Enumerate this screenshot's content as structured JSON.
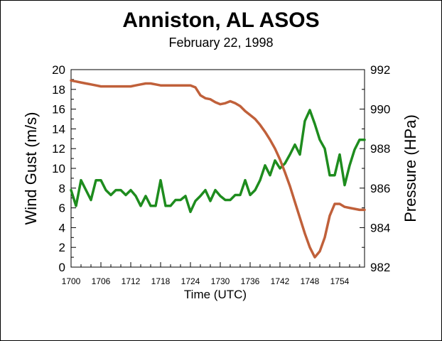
{
  "chart_data": {
    "type": "line",
    "title": "Anniston, AL ASOS",
    "subtitle": "February 22, 1998",
    "xlabel": "Time (UTC)",
    "ylabel_left": "Wind Gust (m/s)",
    "ylabel_right": "Pressure (HPa)",
    "x_ticks": [
      "1700",
      "1706",
      "1712",
      "1718",
      "1724",
      "1730",
      "1736",
      "1742",
      "1748",
      "1754"
    ],
    "xlim": [
      1700,
      1759
    ],
    "ylim_left": [
      0,
      20
    ],
    "ylim_right": [
      982,
      992
    ],
    "y_ticks_left": [
      "0",
      "2",
      "4",
      "6",
      "8",
      "10",
      "12",
      "14",
      "16",
      "18",
      "20"
    ],
    "y_ticks_right": [
      "982",
      "984",
      "986",
      "988",
      "990",
      "992"
    ],
    "grid": false,
    "legend": "none",
    "series": [
      {
        "axis": "left",
        "color": "#1e8c1e",
        "x": [
          1700,
          1701,
          1702,
          1703,
          1704,
          1705,
          1706,
          1707,
          1708,
          1709,
          1710,
          1711,
          1712,
          1713,
          1714,
          1715,
          1716,
          1717,
          1718,
          1719,
          1720,
          1721,
          1722,
          1723,
          1724,
          1725,
          1726,
          1727,
          1728,
          1729,
          1730,
          1731,
          1732,
          1733,
          1734,
          1735,
          1736,
          1737,
          1738,
          1739,
          1740,
          1741,
          1742,
          1743,
          1744,
          1745,
          1746,
          1747,
          1748,
          1749,
          1750,
          1751,
          1752,
          1753,
          1754,
          1755,
          1756,
          1757,
          1758,
          1759
        ],
        "values": [
          7.8,
          6.2,
          8.8,
          7.8,
          6.8,
          8.8,
          8.8,
          7.8,
          7.3,
          7.8,
          7.8,
          7.3,
          7.8,
          7.2,
          6.2,
          7.2,
          6.2,
          6.2,
          8.8,
          6.2,
          6.2,
          6.8,
          6.8,
          7.2,
          5.6,
          6.7,
          7.2,
          7.8,
          6.7,
          7.8,
          7.2,
          6.8,
          6.8,
          7.3,
          7.3,
          8.8,
          7.3,
          7.8,
          8.8,
          10.3,
          9.3,
          10.8,
          10.0,
          10.5,
          11.4,
          12.4,
          11.4,
          14.8,
          15.9,
          14.5,
          12.9,
          12.0,
          9.3,
          9.3,
          11.4,
          8.3,
          10.3,
          11.9,
          12.9,
          12.9
        ]
      },
      {
        "axis": "right",
        "color": "#c0603a",
        "x": [
          1700,
          1701,
          1702,
          1703,
          1704,
          1705,
          1706,
          1707,
          1708,
          1709,
          1710,
          1711,
          1712,
          1713,
          1714,
          1715,
          1716,
          1717,
          1718,
          1719,
          1720,
          1721,
          1722,
          1723,
          1724,
          1725,
          1726,
          1727,
          1728,
          1729,
          1730,
          1731,
          1732,
          1733,
          1734,
          1735,
          1736,
          1737,
          1738,
          1739,
          1740,
          1741,
          1742,
          1743,
          1744,
          1745,
          1746,
          1747,
          1748,
          1749,
          1750,
          1751,
          1752,
          1753,
          1754,
          1755,
          1756,
          1757,
          1758,
          1759
        ],
        "values": [
          991.45,
          991.4,
          991.35,
          991.3,
          991.25,
          991.2,
          991.15,
          991.15,
          991.15,
          991.15,
          991.15,
          991.15,
          991.15,
          991.2,
          991.25,
          991.3,
          991.3,
          991.25,
          991.2,
          991.2,
          991.2,
          991.2,
          991.2,
          991.2,
          991.2,
          991.1,
          990.7,
          990.55,
          990.5,
          990.35,
          990.25,
          990.3,
          990.4,
          990.3,
          990.15,
          989.9,
          989.7,
          989.5,
          989.2,
          988.85,
          988.45,
          988.0,
          987.45,
          986.8,
          986.1,
          985.3,
          984.5,
          983.7,
          983.0,
          982.5,
          982.8,
          983.5,
          984.6,
          985.2,
          985.2,
          985.05,
          985.0,
          984.95,
          984.9,
          984.9
        ]
      }
    ]
  }
}
